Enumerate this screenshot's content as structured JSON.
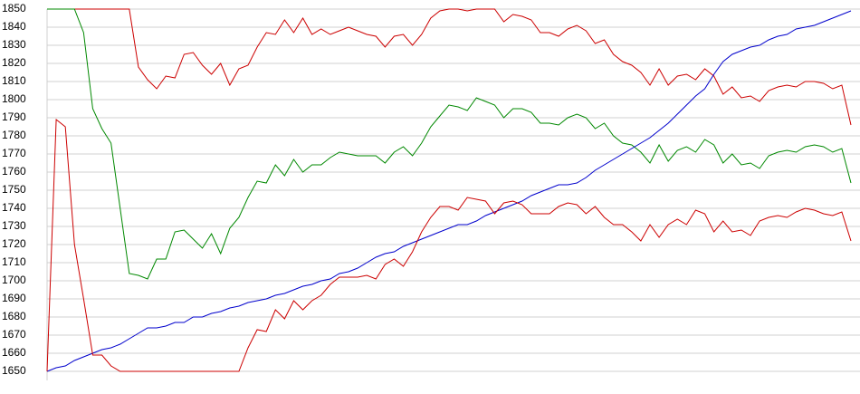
{
  "chart_data": {
    "type": "line",
    "ylim": [
      1650,
      1850
    ],
    "yticks": [
      1650,
      1660,
      1670,
      1680,
      1690,
      1700,
      1710,
      1720,
      1730,
      1740,
      1750,
      1760,
      1770,
      1780,
      1790,
      1800,
      1810,
      1820,
      1830,
      1840,
      1850
    ],
    "grid": true,
    "series": [
      {
        "color": "#cc0000",
        "values": [
          1850,
          1850,
          1850,
          1850,
          1850,
          1850,
          1850,
          1850,
          1850,
          1850,
          1818,
          1811,
          1806,
          1813,
          1812,
          1825,
          1826,
          1819,
          1814,
          1820,
          1808,
          1817,
          1819,
          1829,
          1837,
          1836,
          1844,
          1837,
          1845,
          1836,
          1839,
          1836,
          1838,
          1840,
          1838,
          1836,
          1835,
          1829,
          1835,
          1836,
          1830,
          1836,
          1845,
          1849,
          1850,
          1850,
          1849,
          1850,
          1850,
          1850,
          1843,
          1847,
          1846,
          1844,
          1837,
          1837,
          1835,
          1839,
          1841,
          1838,
          1831,
          1833,
          1825,
          1821,
          1819,
          1815,
          1808,
          1817,
          1808,
          1813,
          1814,
          1811,
          1817,
          1813,
          1803,
          1807,
          1801,
          1802,
          1799,
          1805,
          1807,
          1808,
          1807,
          1810,
          1810,
          1809,
          1806,
          1808,
          1786
        ]
      },
      {
        "color": "#008800",
        "values": [
          1850,
          1850,
          1850,
          1850,
          1837,
          1795,
          1784,
          1776,
          1740,
          1704,
          1703,
          1701,
          1712,
          1712,
          1727,
          1728,
          1723,
          1718,
          1726,
          1715,
          1729,
          1735,
          1746,
          1755,
          1754,
          1764,
          1758,
          1767,
          1760,
          1764,
          1764,
          1768,
          1771,
          1770,
          1769,
          1769,
          1769,
          1765,
          1771,
          1774,
          1769,
          1776,
          1785,
          1791,
          1797,
          1796,
          1794,
          1801,
          1799,
          1797,
          1790,
          1795,
          1795,
          1793,
          1787,
          1787,
          1786,
          1790,
          1792,
          1790,
          1784,
          1787,
          1780,
          1776,
          1775,
          1771,
          1765,
          1775,
          1766,
          1772,
          1774,
          1771,
          1778,
          1775,
          1765,
          1770,
          1764,
          1765,
          1762,
          1769,
          1771,
          1772,
          1771,
          1774,
          1775,
          1774,
          1771,
          1773,
          1754
        ]
      },
      {
        "color": "#0000cc",
        "values": [
          1650,
          1652,
          1653,
          1656,
          1658,
          1660,
          1662,
          1663,
          1665,
          1668,
          1671,
          1674,
          1674,
          1675,
          1677,
          1677,
          1680,
          1680,
          1682,
          1683,
          1685,
          1686,
          1688,
          1689,
          1690,
          1692,
          1693,
          1695,
          1697,
          1698,
          1700,
          1701,
          1704,
          1705,
          1707,
          1710,
          1713,
          1715,
          1716,
          1719,
          1721,
          1723,
          1725,
          1727,
          1729,
          1731,
          1731,
          1733,
          1736,
          1738,
          1740,
          1742,
          1744,
          1747,
          1749,
          1751,
          1753,
          1753,
          1754,
          1757,
          1761,
          1764,
          1767,
          1770,
          1773,
          1776,
          1779,
          1783,
          1787,
          1792,
          1797,
          1802,
          1806,
          1814,
          1821,
          1825,
          1827,
          1829,
          1830,
          1833,
          1835,
          1836,
          1839,
          1840,
          1841,
          1843,
          1845,
          1847,
          1849
        ]
      },
      {
        "color": "#cc0000",
        "values": [
          1650,
          1789,
          1785,
          1720,
          1690,
          1659,
          1659,
          1653,
          1650,
          1650,
          1650,
          1650,
          1650,
          1650,
          1650,
          1650,
          1650,
          1650,
          1650,
          1650,
          1650,
          1650,
          1663,
          1673,
          1672,
          1684,
          1679,
          1689,
          1684,
          1689,
          1692,
          1698,
          1702,
          1702,
          1702,
          1703,
          1701,
          1709,
          1712,
          1708,
          1716,
          1727,
          1735,
          1741,
          1741,
          1739,
          1746,
          1745,
          1744,
          1737,
          1743,
          1744,
          1742,
          1737,
          1737,
          1737,
          1741,
          1743,
          1742,
          1737,
          1741,
          1735,
          1731,
          1731,
          1727,
          1722,
          1731,
          1724,
          1731,
          1734,
          1731,
          1739,
          1737,
          1727,
          1733,
          1727,
          1728,
          1725,
          1733,
          1735,
          1736,
          1735,
          1738,
          1740,
          1739,
          1737,
          1736,
          1738,
          1722
        ]
      }
    ]
  }
}
